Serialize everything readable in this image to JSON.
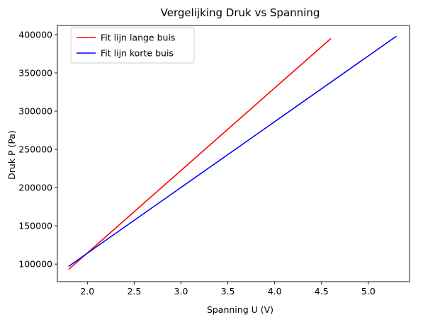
{
  "chart_data": {
    "type": "line",
    "title": "Vergelijking Druk vs Spanning",
    "xlabel": "Spanning U (V)",
    "ylabel": "Druk P (Pa)",
    "xlim": [
      1.68,
      5.44
    ],
    "ylim": [
      77000,
      412000
    ],
    "xticks": [
      2.0,
      2.5,
      3.0,
      3.5,
      4.0,
      4.5,
      5.0
    ],
    "xtick_labels": [
      "2.0",
      "2.5",
      "3.0",
      "3.5",
      "4.0",
      "4.5",
      "5.0"
    ],
    "yticks": [
      100000,
      150000,
      200000,
      250000,
      300000,
      350000,
      400000
    ],
    "ytick_labels": [
      "100000",
      "150000",
      "200000",
      "250000",
      "300000",
      "350000",
      "400000"
    ],
    "grid": false,
    "legend_position": "top-left",
    "series": [
      {
        "name": "Fit lijn lange buis",
        "color": "#ff0000",
        "x": [
          1.8,
          4.6
        ],
        "y": [
          93000,
          395000
        ]
      },
      {
        "name": "Fit lijn korte buis",
        "color": "#0000ff",
        "x": [
          1.8,
          5.3
        ],
        "y": [
          97000,
          398000
        ]
      }
    ]
  }
}
